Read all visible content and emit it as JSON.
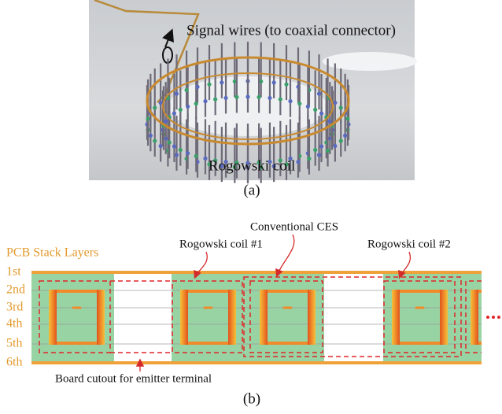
{
  "figure_a": {
    "signal_label": "Signal wires (to coaxial connector)",
    "coil_label": "Rogowski coil",
    "caption": "(a)"
  },
  "figure_b": {
    "title": "PCB Stack Layers",
    "layers": [
      "1st",
      "2nd",
      "3rd",
      "4th",
      "5th",
      "6th"
    ],
    "callouts": {
      "ces": "Conventional CES",
      "coil1": "Rogowski coil #1",
      "coil2": "Rogowski coil #2",
      "cutout": "Board cutout for emitter terminal"
    },
    "caption": "(b)"
  }
}
